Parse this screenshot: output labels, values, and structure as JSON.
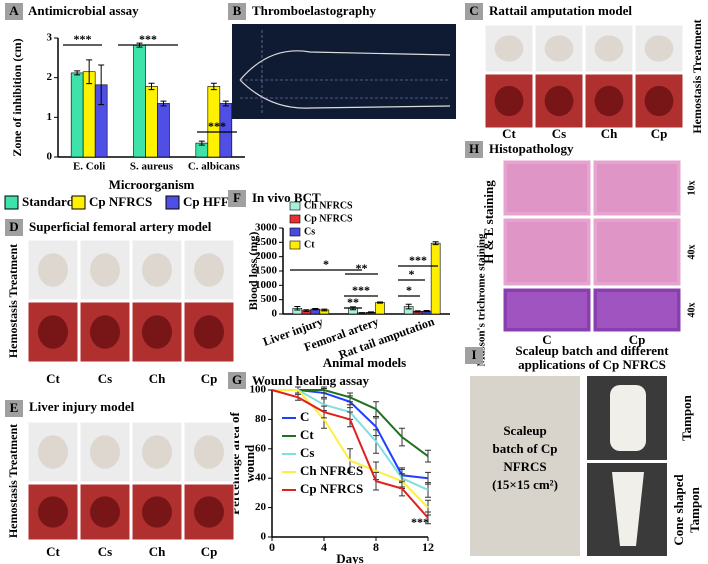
{
  "chart_data": [
    {
      "type": "bar",
      "letter": "A",
      "title": "Antimicrobial assay",
      "ylabel": "Zone of inhibition (cm)",
      "xlabel": "Microorganism",
      "categories": [
        "E. Coli",
        "S. aureus",
        "C. albicans"
      ],
      "series": [
        {
          "name": "Standard",
          "color": "#3de3a8",
          "values": [
            2.12,
            2.82,
            0.35
          ],
          "errors": [
            0.05,
            0.05,
            0.05
          ]
        },
        {
          "name": "Cp NFRCS",
          "color": "#fff200",
          "values": [
            2.15,
            1.78,
            1.78
          ],
          "errors": [
            0.3,
            0.08,
            0.08
          ]
        },
        {
          "name": "Cp HFFC",
          "color": "#4f4fe6",
          "values": [
            1.82,
            1.35,
            1.35
          ],
          "errors": [
            0.5,
            0.06,
            0.06
          ]
        }
      ],
      "ylim": [
        0,
        3
      ],
      "yticks": [
        0,
        1,
        2,
        3
      ],
      "annotations": [
        "***",
        "***",
        "***"
      ]
    },
    {
      "type": "bar",
      "letter": "F",
      "title": "In vivo BCT",
      "ylabel": "Blood loss (mg)",
      "xlabel": "Animal models",
      "categories": [
        "Liver injury",
        "Femoral artery",
        "Rat tail amputation"
      ],
      "series": [
        {
          "name": "Ch NFRCS",
          "color": "#a8f0d8",
          "values": [
            200,
            200,
            260
          ],
          "errors": [
            60,
            50,
            80
          ]
        },
        {
          "name": "Cp NFRCS",
          "color": "#e83030",
          "values": [
            120,
            40,
            90
          ],
          "errors": [
            30,
            10,
            20
          ]
        },
        {
          "name": "Cs",
          "color": "#4a4ae0",
          "values": [
            170,
            60,
            100
          ],
          "errors": [
            20,
            15,
            20
          ]
        },
        {
          "name": "Ct",
          "color": "#ffee00",
          "values": [
            140,
            400,
            2470
          ],
          "errors": [
            30,
            20,
            50
          ]
        }
      ],
      "ylim": [
        0,
        3000
      ],
      "yticks": [
        0,
        500,
        1000,
        1500,
        2000,
        2500,
        3000
      ],
      "annotations": [
        "*",
        "**",
        "***",
        "**",
        "***",
        "*",
        "*"
      ]
    },
    {
      "type": "line",
      "letter": "G",
      "title": "Wound healing assay",
      "ylabel": [
        "Percentage area of",
        "wound"
      ],
      "xlabel": "Days",
      "x": [
        0,
        2,
        4,
        6,
        8,
        10,
        12
      ],
      "series": [
        {
          "name": "C",
          "color": "#2040ff",
          "values": [
            100,
            100,
            98,
            92,
            75,
            42,
            40
          ],
          "errors": [
            0,
            2,
            3,
            4,
            6,
            5,
            4
          ]
        },
        {
          "name": "Ct",
          "color": "#207020",
          "values": [
            100,
            100,
            100,
            95,
            87,
            68,
            55
          ],
          "errors": [
            0,
            2,
            2,
            3,
            5,
            6,
            4
          ]
        },
        {
          "name": "Cs",
          "color": "#80e0e0",
          "values": [
            100,
            100,
            90,
            85,
            65,
            40,
            32
          ],
          "errors": [
            0,
            2,
            4,
            5,
            8,
            6,
            5
          ]
        },
        {
          "name": "Ch NFRCS",
          "color": "#ffee40",
          "values": [
            100,
            100,
            80,
            52,
            45,
            38,
            20
          ],
          "errors": [
            0,
            2,
            6,
            8,
            6,
            5,
            5
          ]
        },
        {
          "name": "Cp NFRCS",
          "color": "#e02020",
          "values": [
            100,
            95,
            85,
            80,
            38,
            33,
            13
          ],
          "errors": [
            0,
            2,
            4,
            5,
            6,
            5,
            4
          ]
        }
      ],
      "xlim": [
        0,
        12
      ],
      "xticks": [
        0,
        4,
        8,
        12
      ],
      "ylim": [
        0,
        100
      ],
      "yticks": [
        0,
        20,
        40,
        60,
        80,
        100
      ],
      "annotations": [
        "***"
      ]
    }
  ],
  "panels": {
    "B": {
      "letter": "B",
      "title": "Thromboelastography"
    },
    "C": {
      "letter": "C",
      "title": "Rattail amputation model",
      "side_label": "Hemostasis Treatment",
      "columns": [
        "Ct",
        "Cs",
        "Ch",
        "Cp"
      ]
    },
    "D": {
      "letter": "D",
      "title": "Superficial femoral artery model",
      "side_label": "Hemostasis Treatment",
      "columns": [
        "Ct",
        "Cs",
        "Ch",
        "Cp"
      ]
    },
    "E": {
      "letter": "E",
      "title": "Liver injury model",
      "side_label": "Hemostasis Treatment",
      "columns": [
        "Ct",
        "Cs",
        "Ch",
        "Cp"
      ]
    },
    "H": {
      "letter": "H",
      "title": "Histopathology",
      "row_labels": [
        "H & E staining",
        "Masson's trichrome staining"
      ],
      "magnifications": [
        "10x",
        "40x",
        "40x"
      ],
      "columns": [
        "C",
        "Cp"
      ]
    },
    "I": {
      "letter": "I",
      "title": [
        "Scaleup batch and different",
        "applications of Cp NFRCS"
      ],
      "sheet_label": [
        "Scaleup",
        "batch of Cp",
        "NFRCS",
        "(15×15 cm²)"
      ],
      "labels": [
        "Tampon",
        "Cone shaped",
        "Tampon"
      ]
    }
  }
}
